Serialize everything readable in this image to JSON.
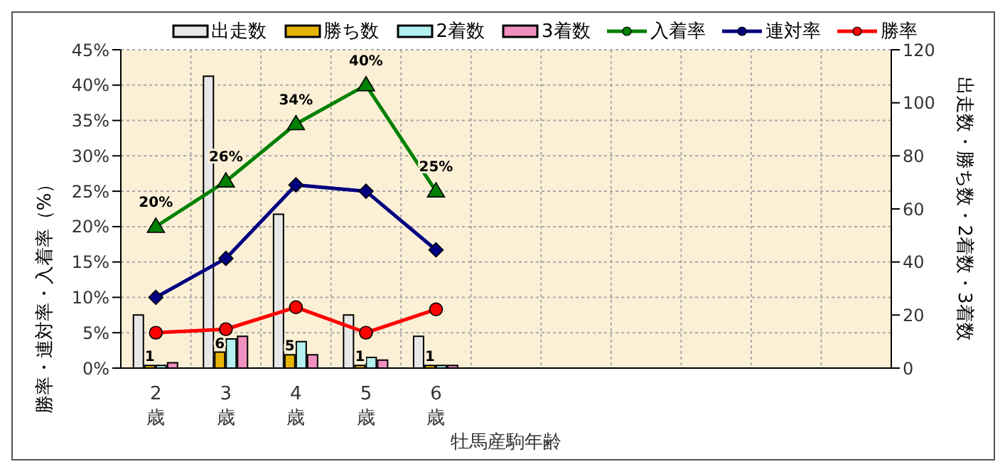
{
  "chart_data": {
    "type": "bar",
    "xlabel": "牡馬産駒年齢",
    "ylabel": "勝率・連対率・入着率（%）",
    "y2label": "出走数・勝ち数・2着数・3着数",
    "categories": [
      "2歳",
      "3歳",
      "4歳",
      "5歳",
      "6歳",
      null,
      null,
      null,
      null,
      null,
      null
    ],
    "series": [
      {
        "name": "出走数",
        "axis": "y2",
        "color": "#e8e8e8",
        "values": [
          20,
          110,
          58,
          20,
          12,
          null,
          null,
          null,
          null,
          null,
          null
        ]
      },
      {
        "name": "勝ち数",
        "axis": "y2",
        "color": "#e6b400",
        "values": [
          1,
          6,
          5,
          1,
          1,
          null,
          null,
          null,
          null,
          null,
          null
        ],
        "value_labels": [
          "1",
          "6",
          "5",
          "1",
          "1",
          null,
          null,
          null,
          null,
          null,
          null
        ]
      },
      {
        "name": "2着数",
        "axis": "y2",
        "color": "#b4f0f0",
        "values": [
          1,
          11,
          10,
          4,
          1,
          null,
          null,
          null,
          null,
          null,
          null
        ]
      },
      {
        "name": "3着数",
        "axis": "y2",
        "color": "#f090c0",
        "values": [
          2,
          12,
          5,
          3,
          1,
          null,
          null,
          null,
          null,
          null,
          null
        ]
      },
      {
        "name": "入着率",
        "type": "line",
        "marker": "triangle",
        "color": "#008000",
        "values": [
          20,
          26.4,
          34.5,
          40,
          25,
          null,
          null,
          null,
          null,
          null,
          null
        ],
        "value_labels": [
          "20%",
          "26%",
          "34%",
          "40%",
          "25%",
          null,
          null,
          null,
          null,
          null,
          null
        ]
      },
      {
        "name": "連対率",
        "type": "line",
        "marker": "diamond",
        "color": "#000080",
        "values": [
          10,
          15.5,
          25.9,
          25,
          16.7,
          null,
          null,
          null,
          null,
          null,
          null
        ]
      },
      {
        "name": "勝率",
        "type": "line",
        "marker": "circle",
        "color": "#ff0000",
        "values": [
          5,
          5.5,
          8.6,
          5,
          8.3,
          null,
          null,
          null,
          null,
          null,
          null
        ]
      }
    ],
    "ylim": [
      0,
      45
    ],
    "yticks": [
      {
        "value": 0,
        "label": "0%"
      },
      {
        "value": 5,
        "label": "5%"
      },
      {
        "value": 10,
        "label": "10%"
      },
      {
        "value": 15,
        "label": "15%"
      },
      {
        "value": 20,
        "label": "20%"
      },
      {
        "value": 25,
        "label": "25%"
      },
      {
        "value": 30,
        "label": "30%"
      },
      {
        "value": 35,
        "label": "35%"
      },
      {
        "value": 40,
        "label": "40%"
      },
      {
        "value": 45,
        "label": "45%"
      }
    ],
    "y2lim": [
      0,
      120
    ],
    "y2ticks": [
      0,
      20,
      40,
      60,
      80,
      100,
      120
    ],
    "grid": true,
    "legend": "top"
  }
}
